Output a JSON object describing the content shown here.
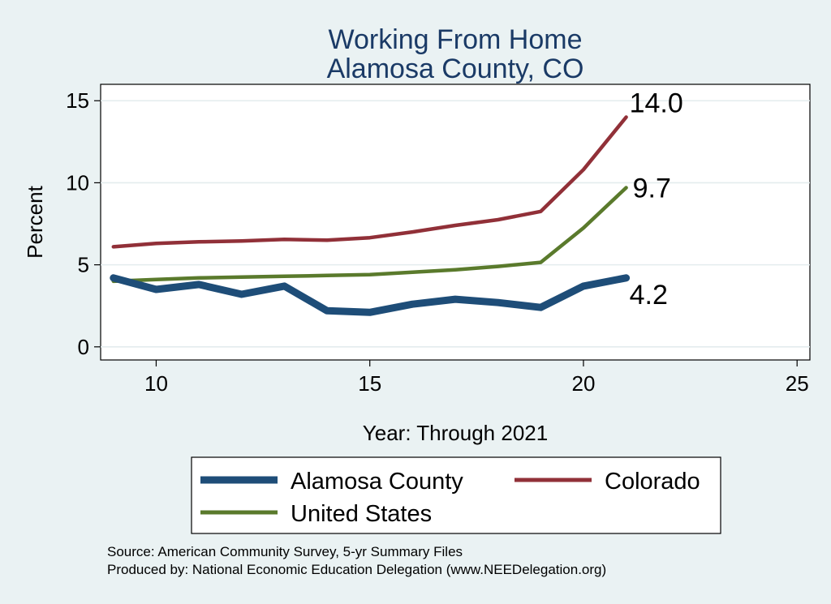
{
  "chart_data": {
    "type": "line",
    "title": [
      "Working From Home",
      "Alamosa County, CO"
    ],
    "xlabel": "Year: Through 2021",
    "ylabel": "Percent",
    "xlim": [
      8.7,
      25.3
    ],
    "ylim": [
      -0.8,
      16
    ],
    "xticks": [
      10,
      15,
      20,
      25
    ],
    "yticks": [
      0,
      5,
      10,
      15
    ],
    "grid": true,
    "legend_position": "bottom",
    "x": [
      9,
      10,
      11,
      12,
      13,
      14,
      15,
      16,
      17,
      18,
      19,
      20,
      21
    ],
    "series": [
      {
        "name": "Alamosa County",
        "color": "#1e4d78",
        "line_style": "thick",
        "values": [
          4.2,
          3.5,
          3.8,
          3.2,
          3.7,
          2.2,
          2.1,
          2.6,
          2.9,
          2.7,
          2.4,
          3.7,
          4.2
        ],
        "end_label": "4.2"
      },
      {
        "name": "Colorado",
        "color": "#913038",
        "line_style": "medium",
        "values": [
          6.1,
          6.3,
          6.4,
          6.45,
          6.55,
          6.5,
          6.65,
          7.0,
          7.4,
          7.75,
          8.25,
          10.8,
          14.0
        ],
        "end_label": "14.0"
      },
      {
        "name": "United States",
        "color": "#5a7a2c",
        "line_style": "medium",
        "values": [
          4.0,
          4.1,
          4.2,
          4.25,
          4.3,
          4.35,
          4.4,
          4.55,
          4.7,
          4.9,
          5.15,
          7.25,
          9.7
        ],
        "end_label": "9.7"
      }
    ],
    "notes": [
      "Source: American Community Survey, 5-yr Summary Files",
      "Produced by: National Economic Education Delegation (www.NEEDelegation.org)"
    ]
  }
}
